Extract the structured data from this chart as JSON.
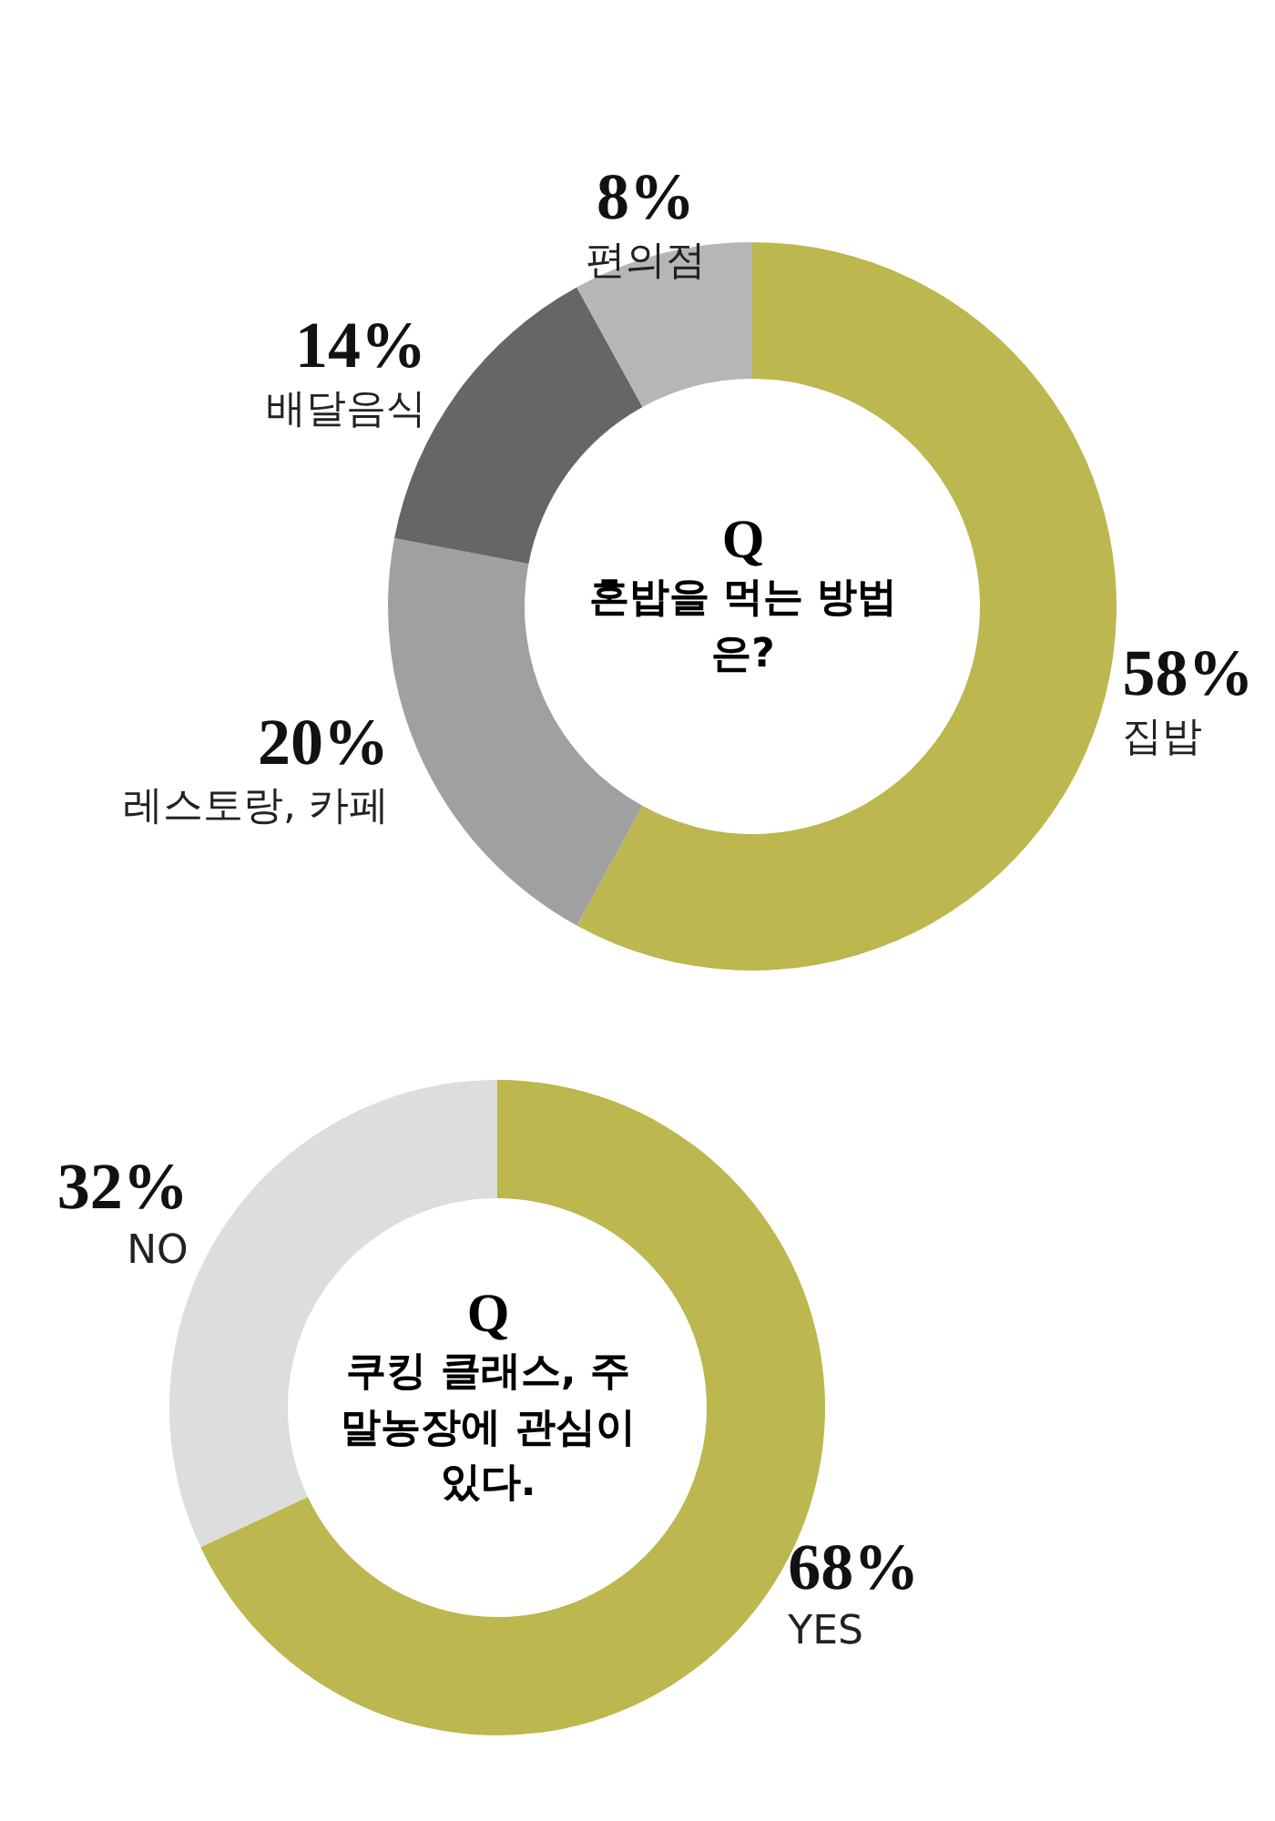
{
  "chart_data": [
    {
      "type": "donut",
      "title": "Q",
      "subtitle": "혼밥을 먹는 방법은?",
      "categories": [
        "집밥",
        "레스토랑, 카페",
        "배달음식",
        "편의점"
      ],
      "values": [
        58,
        20,
        14,
        8
      ],
      "colors": [
        "#bcb74e",
        "#a0a0a0",
        "#666666",
        "#b6b6b6"
      ],
      "value_labels": [
        "58%",
        "20%",
        "14%",
        "8%"
      ]
    },
    {
      "type": "donut",
      "title": "Q",
      "subtitle": "쿠킹 클래스, 주말농장에 관심이 있다.",
      "categories": [
        "YES",
        "NO"
      ],
      "values": [
        68,
        32
      ],
      "colors": [
        "#bcb74e",
        "#dcdddd"
      ],
      "value_labels": [
        "68%",
        "32%"
      ]
    }
  ]
}
